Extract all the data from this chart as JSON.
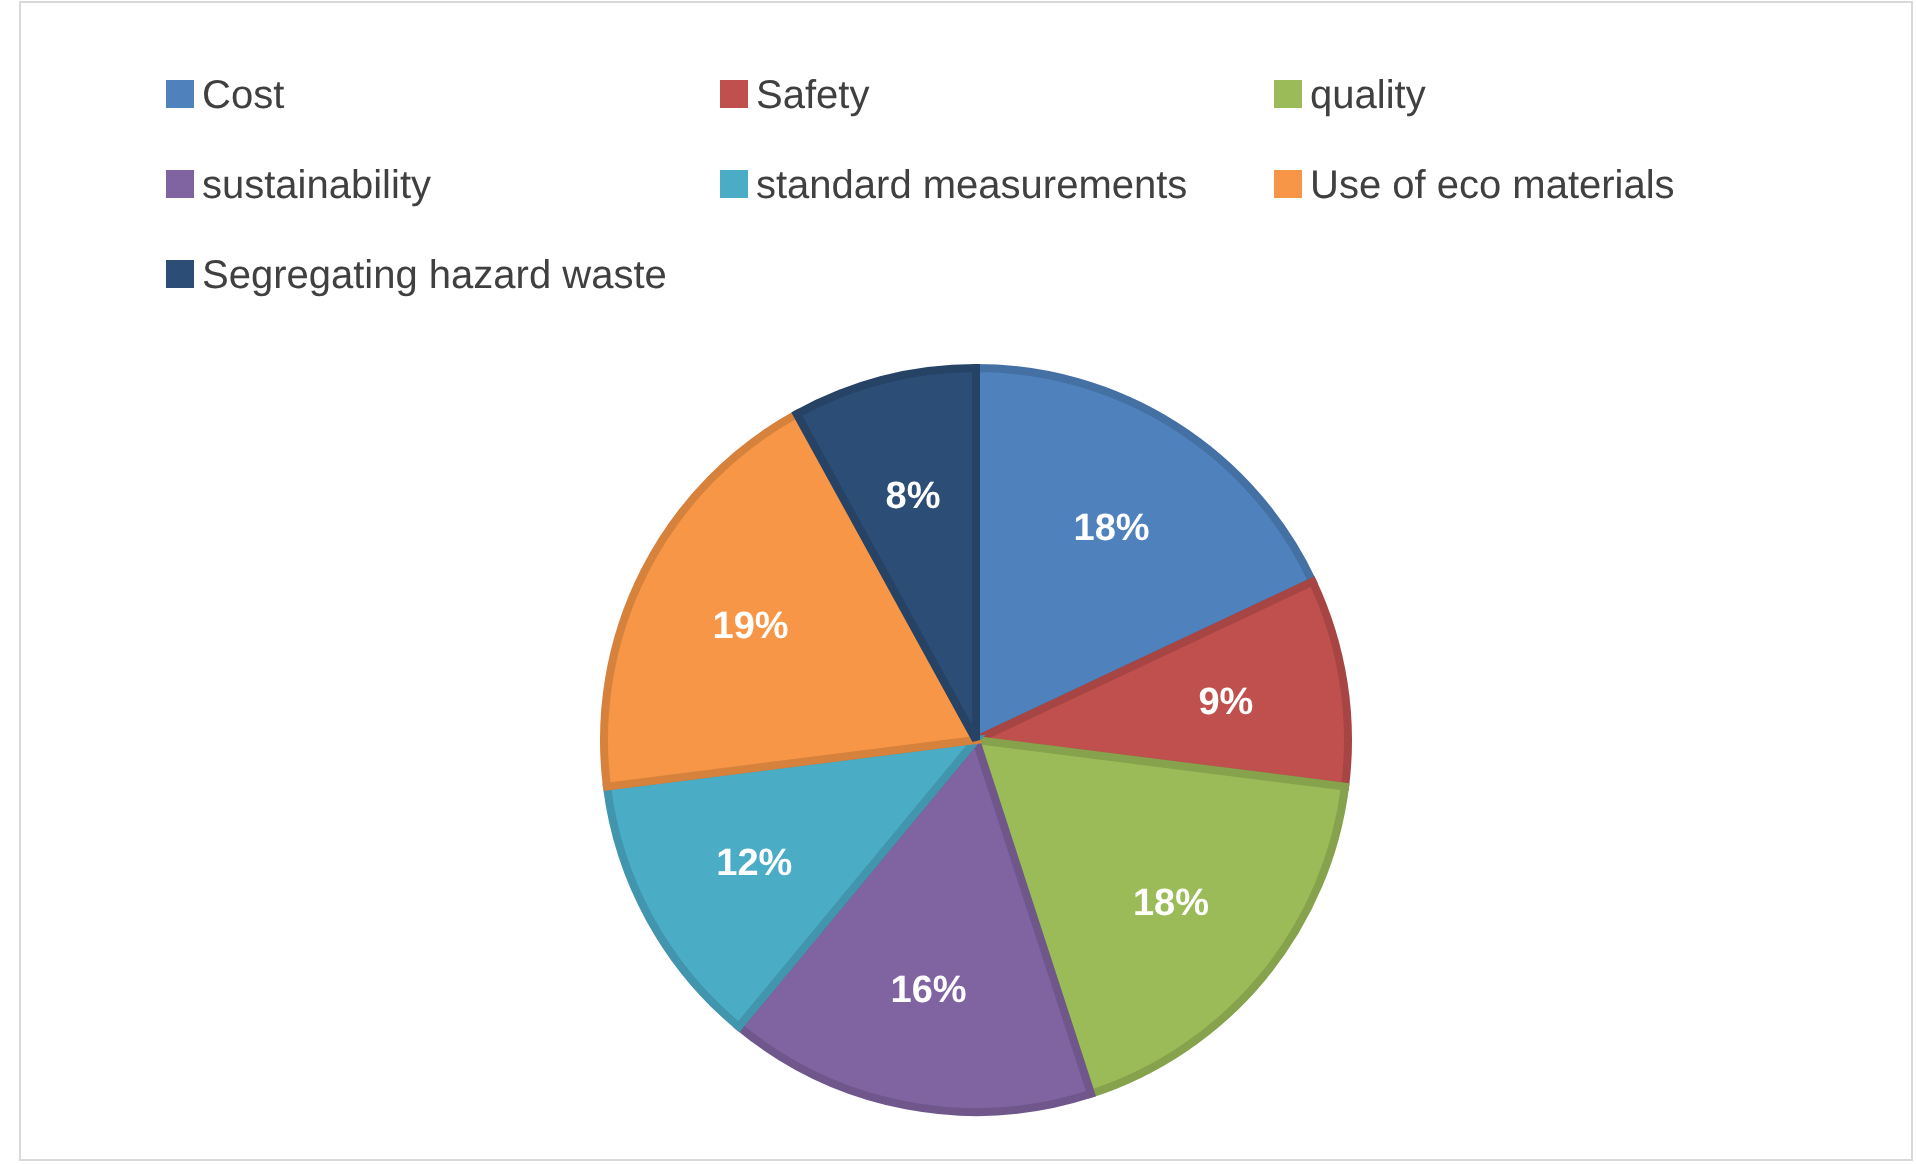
{
  "chart_data": {
    "type": "pie",
    "categories": [
      "Cost",
      "Safety",
      "quality",
      "sustainability",
      "standard measurements",
      "Use of eco materials",
      "Segregating hazard waste"
    ],
    "values": [
      18,
      9,
      18,
      16,
      12,
      19,
      8
    ],
    "colors": [
      "#4f81bd",
      "#c0504d",
      "#9bbb59",
      "#8064a2",
      "#4bacc6",
      "#f79646",
      "#2c4d75"
    ],
    "value_labels": [
      "18%",
      "9%",
      "18%",
      "16%",
      "12%",
      "19%",
      "8%"
    ],
    "legend": "top"
  }
}
